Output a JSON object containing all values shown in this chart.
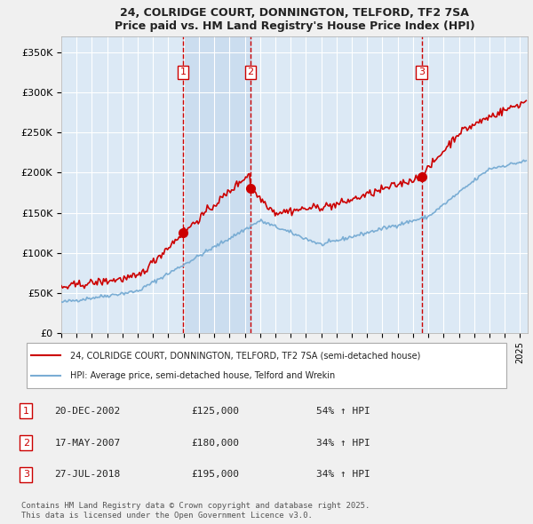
{
  "title_line1": "24, COLRIDGE COURT, DONNINGTON, TELFORD, TF2 7SA",
  "title_line2": "Price paid vs. HM Land Registry's House Price Index (HPI)",
  "xlabel": "",
  "ylabel": "",
  "ylim": [
    0,
    370000
  ],
  "xlim_start": 1995.0,
  "xlim_end": 2025.5,
  "bg_color": "#dce9f5",
  "plot_bg": "#dce9f5",
  "grid_color": "#ffffff",
  "hpi_color": "#7aadd4",
  "price_color": "#cc0000",
  "sale_marker_color": "#cc0000",
  "sale1_x": 2002.97,
  "sale1_y": 125000,
  "sale2_x": 2007.37,
  "sale2_y": 180000,
  "sale3_x": 2018.56,
  "sale3_y": 195000,
  "vline_color": "#cc0000",
  "vline_style": "--",
  "shade_color": "#c5d9ed",
  "legend_label_price": "24, COLRIDGE COURT, DONNINGTON, TELFORD, TF2 7SA (semi-detached house)",
  "legend_label_hpi": "HPI: Average price, semi-detached house, Telford and Wrekin",
  "table_entries": [
    {
      "num": 1,
      "date": "20-DEC-2002",
      "price": "£125,000",
      "hpi": "54% ↑ HPI"
    },
    {
      "num": 2,
      "date": "17-MAY-2007",
      "price": "£180,000",
      "hpi": "34% ↑ HPI"
    },
    {
      "num": 3,
      "date": "27-JUL-2018",
      "price": "£195,000",
      "hpi": "34% ↑ HPI"
    }
  ],
  "footer": "Contains HM Land Registry data © Crown copyright and database right 2025.\nThis data is licensed under the Open Government Licence v3.0.",
  "ytick_labels": [
    "£0",
    "£50K",
    "£100K",
    "£150K",
    "£200K",
    "£250K",
    "£300K",
    "£350K"
  ],
  "ytick_values": [
    0,
    50000,
    100000,
    150000,
    200000,
    250000,
    300000,
    350000
  ]
}
